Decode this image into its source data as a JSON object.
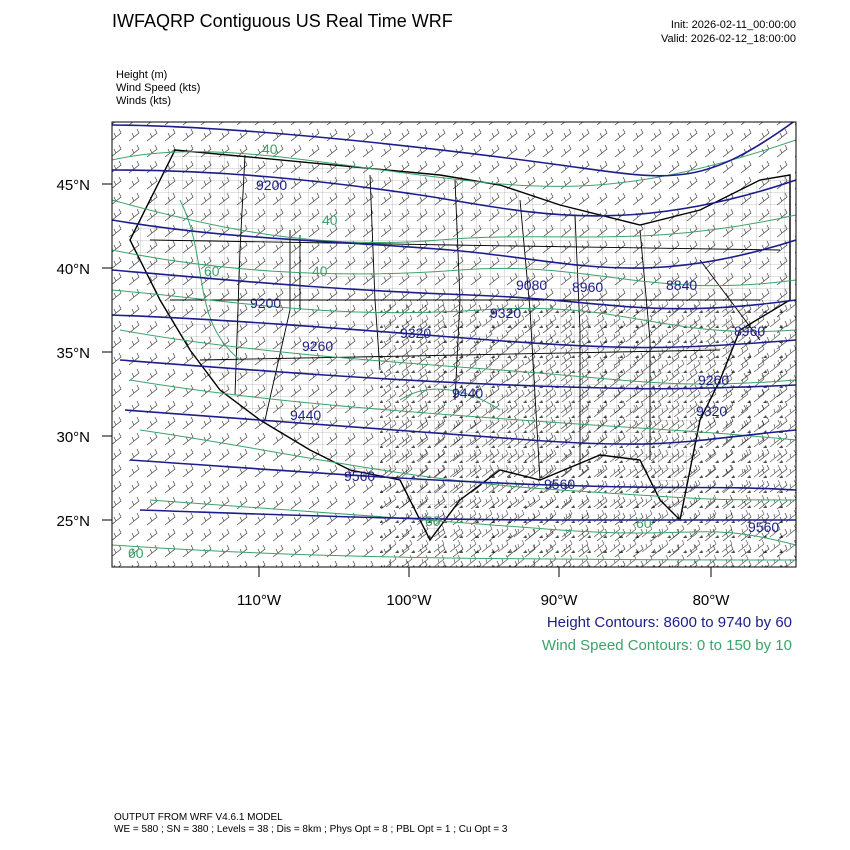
{
  "header": {
    "title": "IWFAQRP Contiguous US Real Time WRF",
    "init": "Init: 2026-02-11_00:00:00",
    "valid": "Valid: 2026-02-12_18:00:00"
  },
  "fields": [
    "Height   (m)",
    "Wind Speed   (kts)",
    "Winds   (kts)"
  ],
  "axes": {
    "lat_labels": [
      "45°N",
      "40°N",
      "35°N",
      "30°N",
      "25°N"
    ],
    "lon_labels": [
      "110°W",
      "100°W",
      "90°W",
      "80°W"
    ]
  },
  "height_labels": [
    "9200",
    "9200",
    "9260",
    "9320",
    "9320",
    "9440",
    "9440",
    "9560",
    "9080",
    "8960",
    "8840",
    "8960",
    "9260",
    "9320",
    "9560",
    "9560"
  ],
  "wind_labels": [
    "40",
    "40",
    "40",
    "60",
    "60",
    "60",
    "60"
  ],
  "legend": {
    "height": "Height Contours: 8600 to 9740 by 60",
    "wind": "Wind Speed Contours: 0 to 150 by 10"
  },
  "footer": {
    "line1": "OUTPUT FROM WRF V4.6.1 MODEL",
    "line2": "WE = 580 ; SN = 380 ; Levels = 38 ; Dis = 8km ; Phys Opt = 8 ; PBL Opt = 1 ; Cu Opt = 3"
  },
  "colors": {
    "height_contour": "#1c1c8c",
    "wind_contour": "#3aa36a",
    "barb": "#000000"
  }
}
